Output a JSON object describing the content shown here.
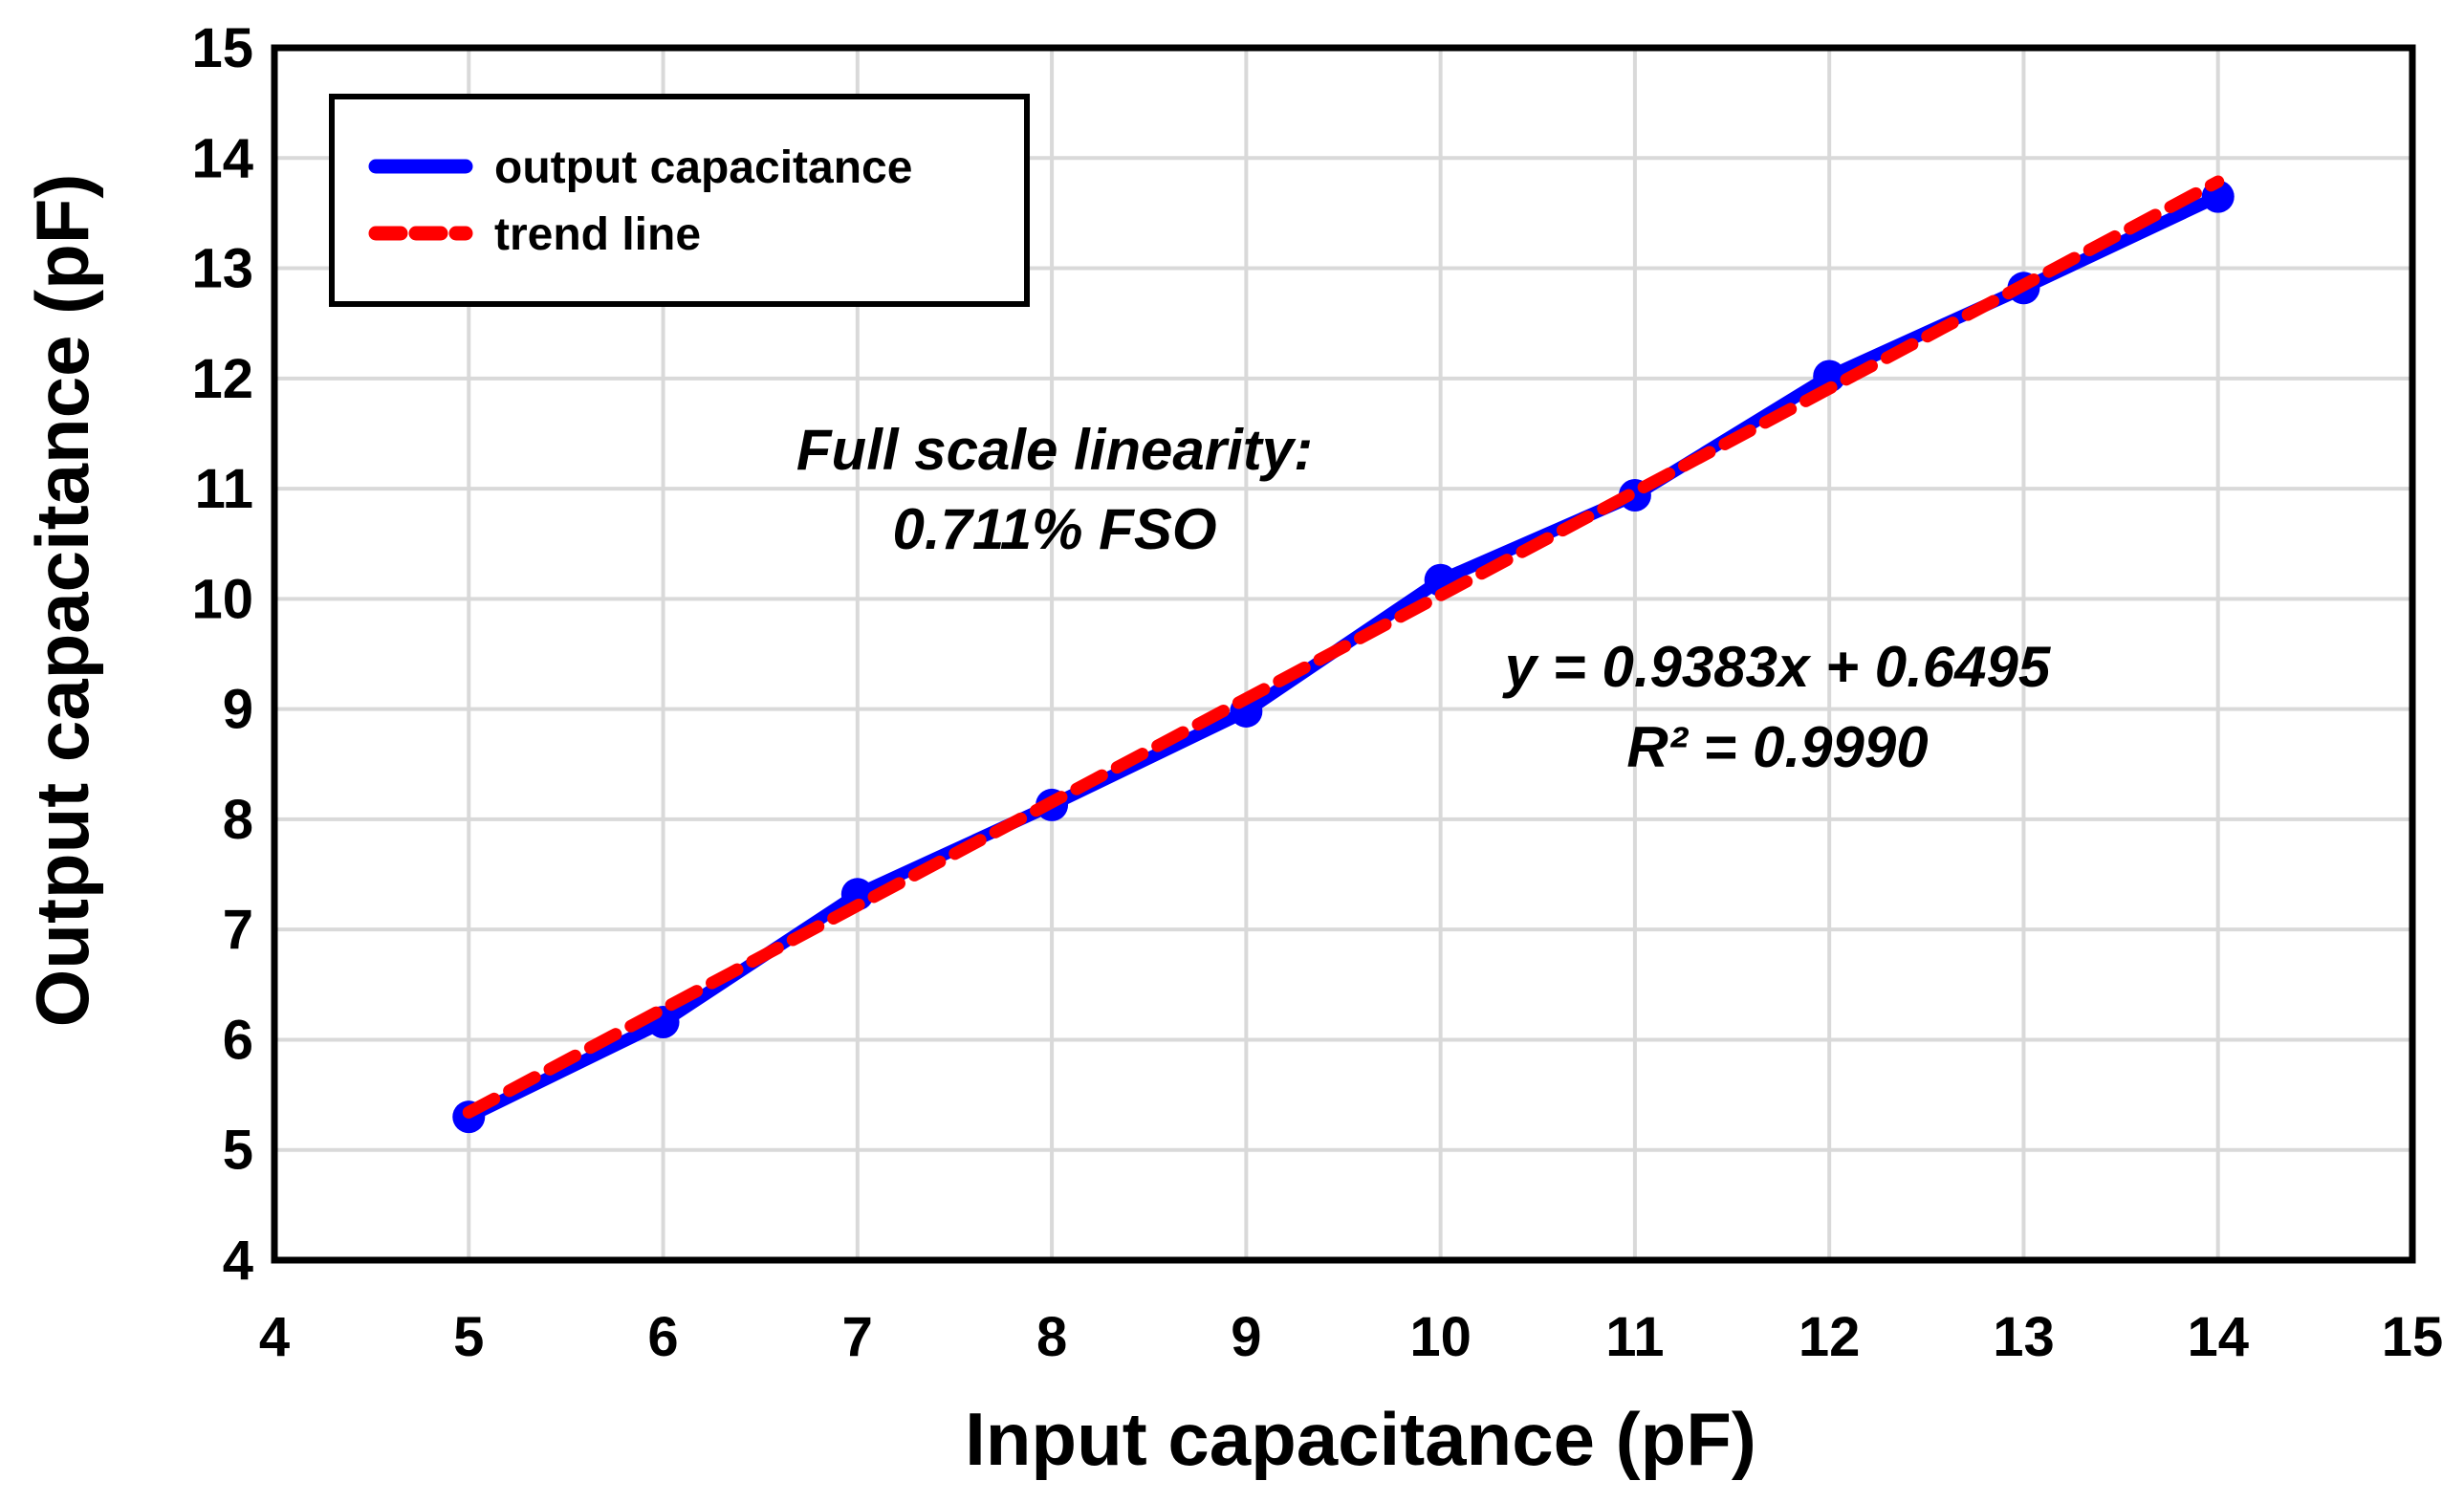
{
  "chart_data": {
    "type": "line",
    "xlabel": "Input capacitance (pF)",
    "ylabel": "Output capacitance (pF)",
    "xlim": [
      4,
      15
    ],
    "ylim": [
      4,
      15
    ],
    "xticks": [
      "4",
      "5",
      "6",
      "7",
      "8",
      "9",
      "10",
      "11",
      "12",
      "13",
      "14",
      "15"
    ],
    "yticks": [
      "4",
      "5",
      "6",
      "7",
      "8",
      "9",
      "10",
      "11",
      "12",
      "13",
      "14",
      "15"
    ],
    "grid": true,
    "legend_position": "top-left",
    "series": [
      {
        "name": "output capacitance",
        "color": "#0000ff",
        "style": "solid-with-markers",
        "x": [
          5,
          6,
          7,
          8,
          9,
          10,
          11,
          12,
          13,
          14
        ],
        "y": [
          5.3,
          6.16,
          7.32,
          8.13,
          8.98,
          10.17,
          10.94,
          12.02,
          12.82,
          13.65
        ]
      },
      {
        "name": "trend line",
        "color": "#ff0000",
        "style": "dashed",
        "slope": 0.9383,
        "intercept": 0.6495,
        "x": [
          5,
          14
        ]
      }
    ],
    "annotations": {
      "linearity_line1": "Full scale linearity:",
      "linearity_line2": "0.711% FSO",
      "equation": "y = 0.9383x + 0.6495",
      "r_squared": "R² = 0.9990"
    }
  }
}
